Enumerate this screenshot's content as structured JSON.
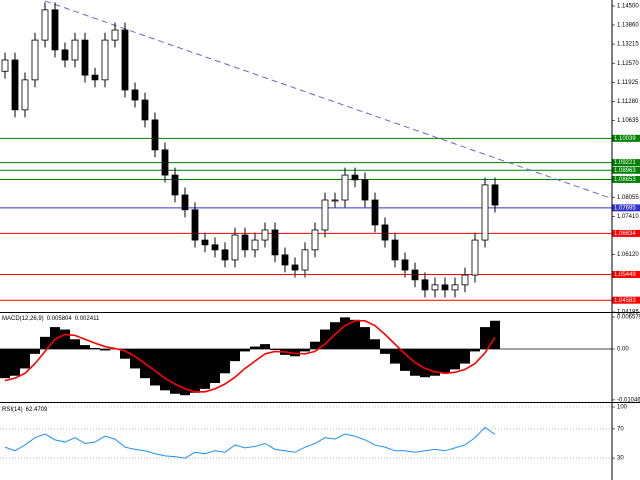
{
  "chart_data": [
    {
      "type": "candlestick",
      "open": [
        1.123,
        1.1268,
        1.11,
        1.1201,
        1.1335,
        1.1437,
        1.1302,
        1.1268,
        1.1335,
        1.1217,
        1.1201,
        1.1335,
        1.1369,
        1.1167,
        1.1133,
        1.1066,
        1.0965,
        1.088,
        1.0813,
        1.0763,
        1.0661,
        1.0645,
        1.0628,
        1.0594,
        1.0678,
        1.0628,
        1.0661,
        1.0695,
        1.0611,
        1.0577,
        1.056,
        1.0628,
        1.0695,
        1.0796,
        1.0796,
        1.088,
        1.0864,
        1.0796,
        1.0712,
        1.0661,
        1.0594,
        1.056,
        1.0527,
        1.0493,
        1.051,
        1.0493,
        1.051,
        1.0543,
        1.0661,
        1.0847
      ],
      "high": [
        1.1293,
        1.1293,
        1.1226,
        1.136,
        1.1462,
        1.1462,
        1.1327,
        1.136,
        1.136,
        1.1242,
        1.136,
        1.1394,
        1.1394,
        1.1192,
        1.1158,
        1.1091,
        1.099,
        1.0905,
        1.0838,
        1.0788,
        1.0686,
        1.067,
        1.0653,
        1.0703,
        1.0703,
        1.0686,
        1.072,
        1.072,
        1.0636,
        1.0602,
        1.0653,
        1.072,
        1.0821,
        1.0821,
        1.0905,
        1.0905,
        1.0889,
        1.0821,
        1.0737,
        1.0686,
        1.0619,
        1.0585,
        1.0552,
        1.0535,
        1.0535,
        1.0535,
        1.0568,
        1.0686,
        1.0872,
        1.0872
      ],
      "low": [
        1.1205,
        1.1075,
        1.1075,
        1.1176,
        1.131,
        1.1277,
        1.1243,
        1.1243,
        1.1192,
        1.1176,
        1.1176,
        1.131,
        1.1142,
        1.1108,
        1.1041,
        1.094,
        1.0855,
        1.0788,
        1.0738,
        1.0636,
        1.062,
        1.0603,
        1.0569,
        1.0569,
        1.0603,
        1.0603,
        1.0636,
        1.0586,
        1.0552,
        1.0535,
        1.0535,
        1.0603,
        1.067,
        1.0771,
        1.0771,
        1.0839,
        1.0771,
        1.0687,
        1.0636,
        1.0569,
        1.0535,
        1.0502,
        1.0468,
        1.0468,
        1.0468,
        1.0468,
        1.0485,
        1.0518,
        1.0636,
        1.0754
      ],
      "close": [
        1.1268,
        1.11,
        1.1201,
        1.1335,
        1.1437,
        1.1302,
        1.1268,
        1.1335,
        1.1217,
        1.1201,
        1.1335,
        1.1369,
        1.1167,
        1.1133,
        1.1066,
        1.0965,
        1.088,
        1.0813,
        1.0763,
        1.0661,
        1.0645,
        1.0628,
        1.0594,
        1.0678,
        1.0628,
        1.0661,
        1.0695,
        1.0611,
        1.0577,
        1.056,
        1.0628,
        1.0695,
        1.0796,
        1.0796,
        1.088,
        1.0864,
        1.0796,
        1.0712,
        1.0661,
        1.0594,
        1.056,
        1.0527,
        1.0493,
        1.051,
        1.0493,
        1.051,
        1.0543,
        1.0661,
        1.0847,
        1.0779
      ],
      "up_color": "#ffffff",
      "down_color": "#000000",
      "ylim": [
        1.04185,
        1.14702
      ],
      "yticks": [
        {
          "value": 1.145,
          "label": "1.14500"
        },
        {
          "value": 1.1386,
          "label": "1.13860"
        },
        1.13215,
        {
          "value": 1.1257,
          "label": "1.12570"
        },
        1.11925,
        {
          "value": 1.1128,
          "label": "1.11280"
        },
        1.10635,
        1.08055,
        {
          "value": 1.0741,
          "label": "1.07410"
        },
        {
          "value": 1.0612,
          "label": "1.06120"
        },
        1.04185
      ],
      "levels": [
        {
          "value": 1.10039,
          "color": "#008000"
        },
        {
          "value": 1.09221,
          "color": "#008000"
        },
        {
          "value": 1.08963,
          "color": "#008000"
        },
        {
          "value": 1.08653,
          "color": "#008000"
        },
        {
          "value": 1.07695,
          "color": "#3333cc"
        },
        {
          "value": 1.06834,
          "color": "#ff0000"
        },
        {
          "value": 1.05449,
          "color": "#ff0000"
        },
        {
          "value": 1.04583,
          "color": "#ff0000"
        }
      ],
      "trendline": {
        "x": [
          4,
          61
        ],
        "y": [
          1.1467,
          1.0797
        ],
        "color": "#6666cc"
      }
    },
    {
      "type": "macd",
      "title": "MACD(12,26,9)",
      "series": [
        {
          "color": "#000000",
          "values": [
            -0.006,
            -0.0055,
            -0.004,
            -0.001,
            0.0025,
            0.0045,
            0.004,
            0.002,
            0.0008,
            0.0002,
            -0.0003,
            0.0,
            -0.002,
            -0.004,
            -0.006,
            -0.0075,
            -0.0085,
            -0.0092,
            -0.0095,
            -0.009,
            -0.0082,
            -0.007,
            -0.005,
            -0.0025,
            -0.0005,
            0.0005,
            0.001,
            -0.0002,
            -0.0012,
            -0.0015,
            -0.0005,
            0.0015,
            0.004,
            0.0055,
            0.0065,
            0.006,
            0.0045,
            0.002,
            -0.001,
            -0.003,
            -0.0045,
            -0.0055,
            -0.0058,
            -0.0055,
            -0.005,
            -0.0042,
            -0.003,
            -0.0005,
            0.0045,
            0.005804
          ]
        },
        {
          "color": "#ff0000",
          "values": [
            -0.0065,
            -0.006,
            -0.005,
            -0.003,
            -0.0005,
            0.002,
            0.003,
            0.0028,
            0.002,
            0.0012,
            0.0005,
            0.0001,
            -0.0004,
            -0.0015,
            -0.003,
            -0.0045,
            -0.006,
            -0.0072,
            -0.0082,
            -0.0088,
            -0.0088,
            -0.0082,
            -0.0072,
            -0.0058,
            -0.004,
            -0.0025,
            -0.001,
            -0.0005,
            -0.0006,
            -0.0009,
            -0.001,
            -0.0005,
            0.001,
            0.003,
            0.0048,
            0.0058,
            0.0058,
            0.0048,
            0.003,
            0.001,
            -0.001,
            -0.0028,
            -0.004,
            -0.0047,
            -0.005,
            -0.0048,
            -0.0042,
            -0.003,
            -0.0008,
            0.002411
          ]
        }
      ],
      "ylim": [
        -0.0109,
        0.0074
      ],
      "yticks": [
        0.006579,
        {
          "value": 0,
          "label": "0.00"
        },
        -0.010465
      ]
    },
    {
      "type": "line",
      "title": "RSI(14)",
      "color": "#1e90ff",
      "values": [
        45,
        40,
        48,
        58,
        63,
        55,
        52,
        58,
        50,
        52,
        60,
        56,
        45,
        42,
        40,
        36,
        33,
        32,
        30,
        38,
        36,
        40,
        38,
        48,
        44,
        46,
        50,
        42,
        40,
        38,
        45,
        50,
        58,
        56,
        63,
        60,
        55,
        48,
        45,
        40,
        40,
        38,
        40,
        42,
        40,
        44,
        48,
        58,
        72,
        62.4709
      ],
      "ylim": [
        0,
        100
      ],
      "yticks": [
        100,
        70,
        30
      ],
      "grid": true
    }
  ]
}
